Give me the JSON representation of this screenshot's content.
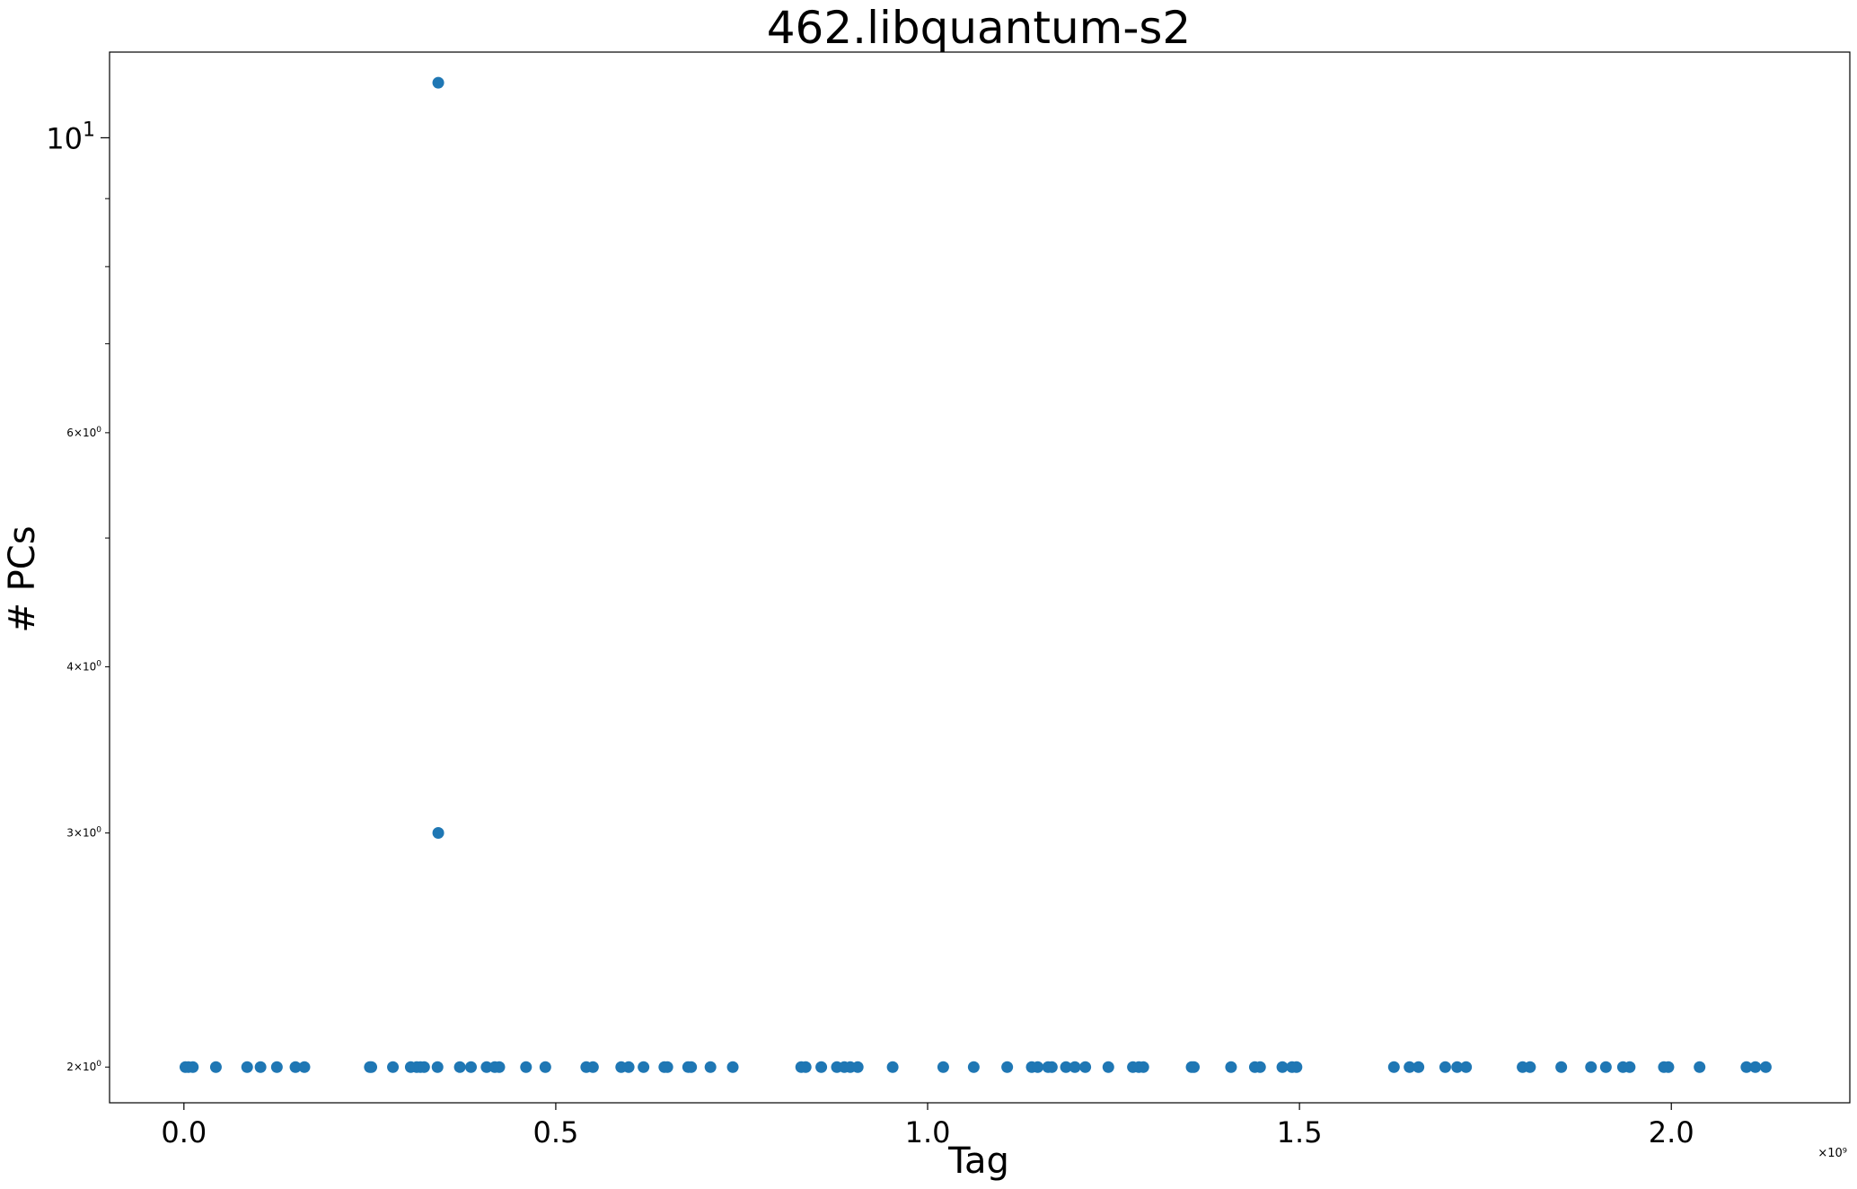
{
  "chart_data": {
    "type": "scatter",
    "title": "462.libquantum-s2",
    "xlabel": "Tag",
    "ylabel": "# PCs",
    "x_multiplier_label": "×10⁹",
    "xlim": [
      -0.1,
      2.24
    ],
    "ylim": [
      1.88,
      11.6
    ],
    "yscale": "log",
    "x_ticks": [
      {
        "value": 0.0,
        "label": "0.0"
      },
      {
        "value": 0.5,
        "label": "0.5"
      },
      {
        "value": 1.0,
        "label": "1.0"
      },
      {
        "value": 1.5,
        "label": "1.5"
      },
      {
        "value": 2.0,
        "label": "2.0"
      }
    ],
    "y_major_ticks": [
      {
        "value": 10,
        "label": "10",
        "sup": "1"
      }
    ],
    "y_minor_ticks": [
      {
        "value": 2,
        "label": "2×10",
        "sup": "0"
      },
      {
        "value": 3,
        "label": "3×10",
        "sup": "0"
      },
      {
        "value": 4,
        "label": "4×10",
        "sup": "0"
      },
      {
        "value": 5,
        "label": "",
        "sup": ""
      },
      {
        "value": 6,
        "label": "6×10",
        "sup": "0"
      },
      {
        "value": 7,
        "label": "",
        "sup": ""
      },
      {
        "value": 8,
        "label": "",
        "sup": ""
      },
      {
        "value": 9,
        "label": "",
        "sup": ""
      }
    ],
    "grid": false,
    "series": [
      {
        "color": "#1f77b4",
        "points": [
          {
            "x": 0.002,
            "y": 2
          },
          {
            "x": 0.006,
            "y": 2
          },
          {
            "x": 0.012,
            "y": 2
          },
          {
            "x": 0.043,
            "y": 2
          },
          {
            "x": 0.085,
            "y": 2
          },
          {
            "x": 0.103,
            "y": 2
          },
          {
            "x": 0.125,
            "y": 2
          },
          {
            "x": 0.15,
            "y": 2
          },
          {
            "x": 0.162,
            "y": 2
          },
          {
            "x": 0.25,
            "y": 2
          },
          {
            "x": 0.252,
            "y": 2
          },
          {
            "x": 0.281,
            "y": 2
          },
          {
            "x": 0.305,
            "y": 2
          },
          {
            "x": 0.313,
            "y": 2
          },
          {
            "x": 0.318,
            "y": 2
          },
          {
            "x": 0.323,
            "y": 2
          },
          {
            "x": 0.341,
            "y": 2
          },
          {
            "x": 0.342,
            "y": 3
          },
          {
            "x": 0.342,
            "y": 11
          },
          {
            "x": 0.371,
            "y": 2
          },
          {
            "x": 0.386,
            "y": 2
          },
          {
            "x": 0.407,
            "y": 2
          },
          {
            "x": 0.418,
            "y": 2
          },
          {
            "x": 0.424,
            "y": 2
          },
          {
            "x": 0.46,
            "y": 2
          },
          {
            "x": 0.486,
            "y": 2
          },
          {
            "x": 0.541,
            "y": 2
          },
          {
            "x": 0.55,
            "y": 2
          },
          {
            "x": 0.588,
            "y": 2
          },
          {
            "x": 0.598,
            "y": 2
          },
          {
            "x": 0.618,
            "y": 2
          },
          {
            "x": 0.646,
            "y": 2
          },
          {
            "x": 0.65,
            "y": 2
          },
          {
            "x": 0.678,
            "y": 2
          },
          {
            "x": 0.682,
            "y": 2
          },
          {
            "x": 0.708,
            "y": 2
          },
          {
            "x": 0.738,
            "y": 2
          },
          {
            "x": 0.83,
            "y": 2
          },
          {
            "x": 0.836,
            "y": 2
          },
          {
            "x": 0.857,
            "y": 2
          },
          {
            "x": 0.878,
            "y": 2
          },
          {
            "x": 0.888,
            "y": 2
          },
          {
            "x": 0.896,
            "y": 2
          },
          {
            "x": 0.906,
            "y": 2
          },
          {
            "x": 0.953,
            "y": 2
          },
          {
            "x": 1.021,
            "y": 2
          },
          {
            "x": 1.062,
            "y": 2
          },
          {
            "x": 1.107,
            "y": 2
          },
          {
            "x": 1.14,
            "y": 2
          },
          {
            "x": 1.148,
            "y": 2
          },
          {
            "x": 1.162,
            "y": 2
          },
          {
            "x": 1.167,
            "y": 2
          },
          {
            "x": 1.186,
            "y": 2
          },
          {
            "x": 1.198,
            "y": 2
          },
          {
            "x": 1.212,
            "y": 2
          },
          {
            "x": 1.243,
            "y": 2
          },
          {
            "x": 1.276,
            "y": 2
          },
          {
            "x": 1.284,
            "y": 2
          },
          {
            "x": 1.29,
            "y": 2
          },
          {
            "x": 1.355,
            "y": 2
          },
          {
            "x": 1.358,
            "y": 2
          },
          {
            "x": 1.408,
            "y": 2
          },
          {
            "x": 1.44,
            "y": 2
          },
          {
            "x": 1.447,
            "y": 2
          },
          {
            "x": 1.477,
            "y": 2
          },
          {
            "x": 1.49,
            "y": 2
          },
          {
            "x": 1.496,
            "y": 2
          },
          {
            "x": 1.627,
            "y": 2
          },
          {
            "x": 1.648,
            "y": 2
          },
          {
            "x": 1.66,
            "y": 2
          },
          {
            "x": 1.696,
            "y": 2
          },
          {
            "x": 1.712,
            "y": 2
          },
          {
            "x": 1.724,
            "y": 2
          },
          {
            "x": 1.8,
            "y": 2
          },
          {
            "x": 1.81,
            "y": 2
          },
          {
            "x": 1.852,
            "y": 2
          },
          {
            "x": 1.892,
            "y": 2
          },
          {
            "x": 1.912,
            "y": 2
          },
          {
            "x": 1.935,
            "y": 2
          },
          {
            "x": 1.944,
            "y": 2
          },
          {
            "x": 1.99,
            "y": 2
          },
          {
            "x": 1.996,
            "y": 2
          },
          {
            "x": 2.038,
            "y": 2
          },
          {
            "x": 2.101,
            "y": 2
          },
          {
            "x": 2.113,
            "y": 2
          },
          {
            "x": 2.127,
            "y": 2
          }
        ]
      }
    ]
  }
}
